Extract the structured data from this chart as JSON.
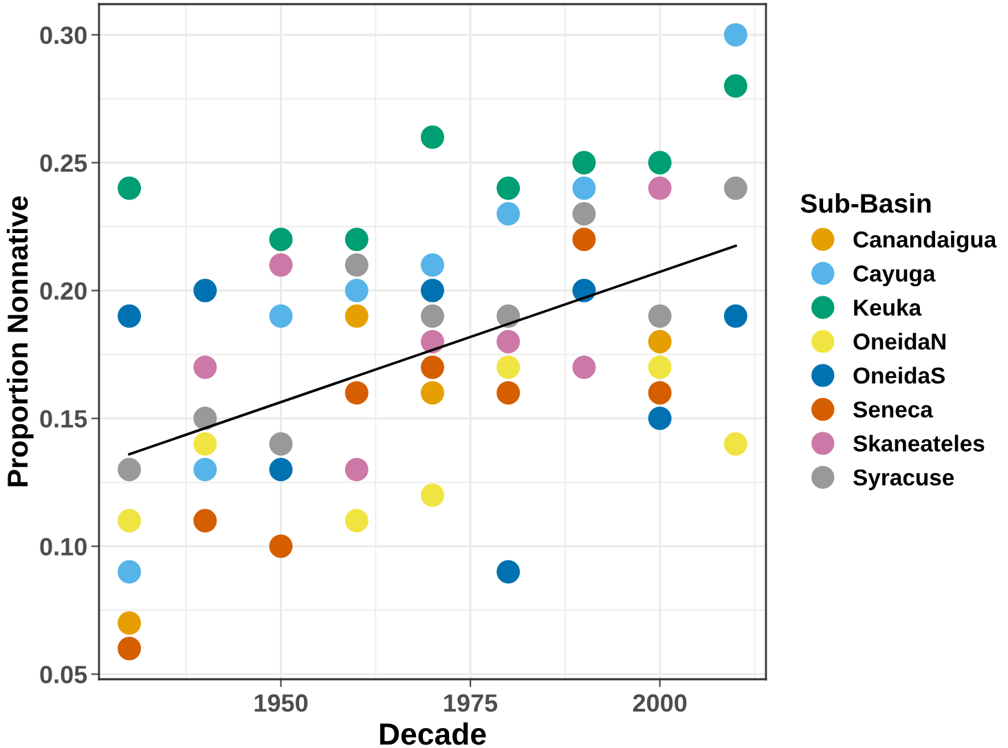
{
  "chart_data": {
    "type": "scatter",
    "xlabel": "Decade",
    "ylabel": "Proportion Nonnative",
    "legend_title": "Sub-Basin",
    "legend": "right",
    "grid": true,
    "marker": "circle",
    "xlim": [
      1926,
      2014
    ],
    "xticks": [
      1950,
      1975,
      2000
    ],
    "ylim": [
      0.048,
      0.312
    ],
    "yticks": [
      0.05,
      {
        "value": 0.1,
        "label": "0.10"
      },
      0.15,
      {
        "value": 0.2,
        "label": "0.20"
      },
      0.25,
      {
        "value": 0.3,
        "label": "0.30"
      }
    ],
    "series": [
      {
        "name": "Canandaigua",
        "color": "#e69f00",
        "x": [
          1930,
          1960,
          1970,
          2000
        ],
        "values": [
          0.07,
          0.19,
          0.16,
          0.18
        ]
      },
      {
        "name": "Cayuga",
        "color": "#56b4e9",
        "x": [
          1930,
          1940,
          1950,
          1960,
          1970,
          1980,
          1990,
          2010
        ],
        "values": [
          0.09,
          0.13,
          0.19,
          0.2,
          0.21,
          0.23,
          0.24,
          0.3
        ]
      },
      {
        "name": "Keuka",
        "color": "#009e73",
        "x": [
          1930,
          1950,
          1960,
          1970,
          1980,
          1990,
          2000,
          2010
        ],
        "values": [
          0.24,
          0.22,
          0.22,
          0.26,
          0.24,
          0.25,
          0.25,
          0.28
        ]
      },
      {
        "name": "OneidaN",
        "color": "#f0e442",
        "x": [
          1930,
          1940,
          1960,
          1970,
          1980,
          2000,
          2010
        ],
        "values": [
          0.11,
          0.14,
          0.11,
          0.12,
          0.17,
          0.17,
          0.14
        ]
      },
      {
        "name": "OneidaS",
        "color": "#0072b2",
        "x": [
          1930,
          1940,
          1950,
          1970,
          1980,
          1990,
          2000,
          2010
        ],
        "values": [
          0.19,
          0.2,
          0.13,
          0.2,
          0.09,
          0.2,
          0.15,
          0.19
        ]
      },
      {
        "name": "Seneca",
        "color": "#d55e00",
        "x": [
          1930,
          1940,
          1950,
          1960,
          1970,
          1980,
          1990,
          2000
        ],
        "values": [
          0.06,
          0.11,
          0.1,
          0.16,
          0.17,
          0.16,
          0.22,
          0.16
        ]
      },
      {
        "name": "Skaneateles",
        "color": "#cc79a7",
        "x": [
          1940,
          1950,
          1960,
          1970,
          1980,
          1990,
          2000
        ],
        "values": [
          0.17,
          0.21,
          0.13,
          0.18,
          0.18,
          0.17,
          0.24
        ]
      },
      {
        "name": "Syracuse",
        "color": "#999999",
        "x": [
          1930,
          1940,
          1950,
          1960,
          1970,
          1980,
          1990,
          2000,
          2010
        ],
        "values": [
          0.13,
          0.15,
          0.14,
          0.21,
          0.19,
          0.19,
          0.23,
          0.19,
          0.24
        ]
      },
      {
        "type": "line",
        "color": "#000000",
        "x": [
          1930,
          2010
        ],
        "values": [
          0.136,
          0.2175
        ],
        "marker": "none",
        "line_style": "solid"
      }
    ]
  }
}
